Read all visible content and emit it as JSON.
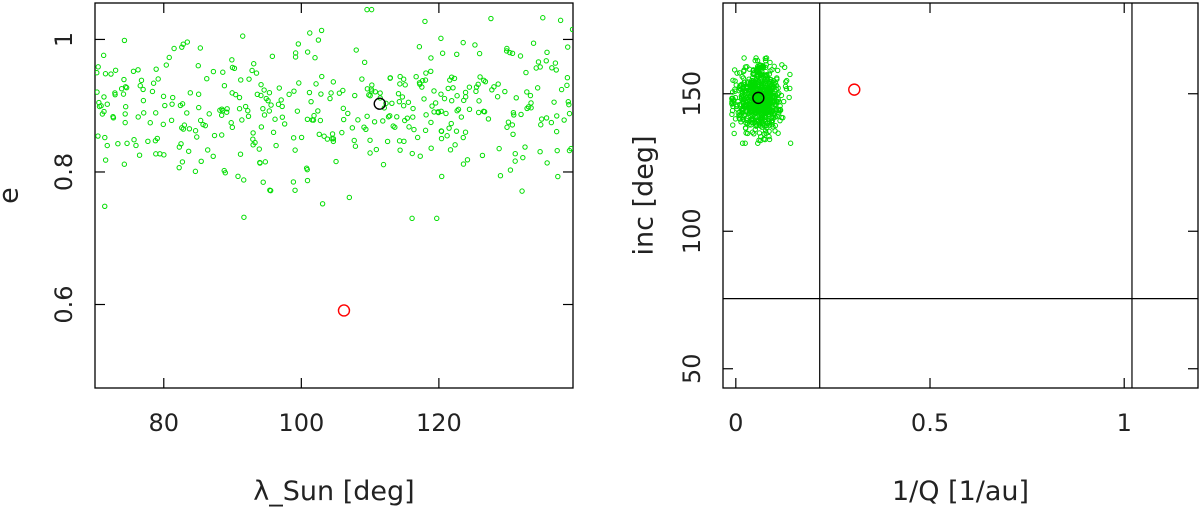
{
  "chart_data": [
    {
      "type": "scatter",
      "xlabel": "λ_Sun [deg]",
      "ylabel": "e",
      "xlim": [
        70,
        139.5
      ],
      "ylim": [
        0.474,
        1.055
      ],
      "xticks": [
        {
          "v": 80,
          "label": "80"
        },
        {
          "v": 100,
          "label": "100"
        },
        {
          "v": 120,
          "label": "120"
        }
      ],
      "yticks": [
        {
          "v": 0.6,
          "label": "0.6"
        },
        {
          "v": 0.8,
          "label": "0.8"
        },
        {
          "v": 1.0,
          "label": "1"
        }
      ],
      "grid": false,
      "cloud": {
        "color": "#00dd00",
        "count": 420,
        "x_range": [
          70,
          139.5
        ],
        "y_mean": 0.9,
        "y_sd": 0.055,
        "y_range": [
          0.73,
          1.045
        ]
      },
      "series": [
        {
          "color": "#000000",
          "points": [
            [
              111.4,
              0.903
            ]
          ]
        },
        {
          "color": "#ff0000",
          "points": [
            [
              106.2,
              0.591
            ]
          ]
        }
      ]
    },
    {
      "type": "scatter",
      "xlabel": "1/Q [1/au]",
      "ylabel": "inc [deg]",
      "xlim": [
        -0.033,
        1.19
      ],
      "ylim": [
        43,
        183
      ],
      "xticks": [
        {
          "v": 0,
          "label": "0"
        },
        {
          "v": 0.5,
          "label": "0.5"
        },
        {
          "v": 1,
          "label": "1"
        }
      ],
      "yticks": [
        {
          "v": 50,
          "label": "50"
        },
        {
          "v": 100,
          "label": "100"
        },
        {
          "v": 150,
          "label": "150"
        }
      ],
      "grid": false,
      "cloud": {
        "color": "#00dd00",
        "count": 650,
        "x_mean": 0.06,
        "x_sd": 0.03,
        "x_range": [
          -0.01,
          0.16
        ],
        "y_mean": 148,
        "y_sd": 6,
        "y_range": [
          132,
          163
        ]
      },
      "series": [
        {
          "color": "#000000",
          "points": [
            [
              0.058,
              148.5
            ]
          ]
        },
        {
          "color": "#ff0000",
          "points": [
            [
              0.305,
              151.5
            ]
          ]
        }
      ],
      "vlines": [
        0.216,
        1.02
      ],
      "hlines": [
        75.5
      ]
    }
  ]
}
